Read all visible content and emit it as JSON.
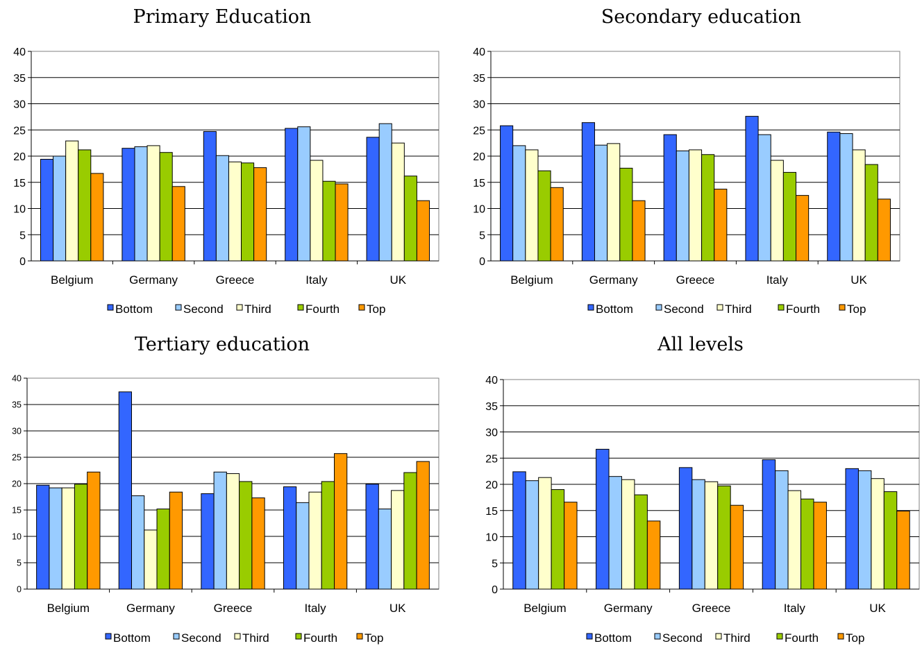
{
  "chart_data": [
    {
      "type": "bar",
      "title": "Primary Education",
      "categories": [
        "Belgium",
        "Germany",
        "Greece",
        "Italy",
        "UK"
      ],
      "series": [
        {
          "name": "Bottom",
          "values": [
            19.4,
            21.5,
            24.7,
            25.3,
            23.6
          ]
        },
        {
          "name": "Second",
          "values": [
            20.0,
            21.8,
            20.1,
            25.6,
            26.2
          ]
        },
        {
          "name": "Third",
          "values": [
            22.9,
            22.0,
            18.9,
            19.2,
            22.5
          ]
        },
        {
          "name": "Fourth",
          "values": [
            21.2,
            20.7,
            18.7,
            15.2,
            16.2
          ]
        },
        {
          "name": "Top",
          "values": [
            16.7,
            14.2,
            17.8,
            14.7,
            11.5
          ]
        }
      ],
      "ylim": [
        0,
        40
      ],
      "yticks": [
        "0",
        "5",
        "10",
        "15",
        "20",
        "25",
        "30",
        "35",
        "40"
      ],
      "grid": true,
      "legend": "bottom"
    },
    {
      "type": "bar",
      "title": "Secondary education",
      "categories": [
        "Belgium",
        "Germany",
        "Greece",
        "Italy",
        "UK"
      ],
      "series": [
        {
          "name": "Bottom",
          "values": [
            25.8,
            26.4,
            24.1,
            27.6,
            24.6
          ]
        },
        {
          "name": "Second",
          "values": [
            22.0,
            22.1,
            21.0,
            24.1,
            24.3
          ]
        },
        {
          "name": "Third",
          "values": [
            21.2,
            22.4,
            21.2,
            19.2,
            21.2
          ]
        },
        {
          "name": "Fourth",
          "values": [
            17.2,
            17.7,
            20.3,
            16.9,
            18.4
          ]
        },
        {
          "name": "Top",
          "values": [
            14.0,
            11.5,
            13.7,
            12.5,
            11.8
          ]
        }
      ],
      "ylim": [
        0,
        40
      ],
      "yticks": [
        "0",
        "5",
        "10",
        "15",
        "20",
        "25",
        "30",
        "35",
        "40"
      ],
      "grid": true,
      "legend": "bottom"
    },
    {
      "type": "bar",
      "title": "Tertiary education",
      "categories": [
        "Belgium",
        "Germany",
        "Greece",
        "Italy",
        "UK"
      ],
      "series": [
        {
          "name": "Bottom",
          "values": [
            19.7,
            37.4,
            18.1,
            19.4,
            19.9
          ]
        },
        {
          "name": "Second",
          "values": [
            19.2,
            17.7,
            22.2,
            16.4,
            15.2
          ]
        },
        {
          "name": "Third",
          "values": [
            19.2,
            11.2,
            21.9,
            18.4,
            18.7
          ]
        },
        {
          "name": "Fourth",
          "values": [
            19.9,
            15.2,
            20.4,
            20.4,
            22.1
          ]
        },
        {
          "name": "Top",
          "values": [
            22.2,
            18.4,
            17.3,
            25.7,
            24.2
          ]
        }
      ],
      "ylim": [
        0,
        40
      ],
      "yticks": [
        "0",
        "5",
        "10",
        "15",
        "20",
        "25",
        "30",
        "35",
        "40"
      ],
      "grid": true,
      "legend": "bottom"
    },
    {
      "type": "bar",
      "title": "All levels",
      "categories": [
        "Belgium",
        "Germany",
        "Greece",
        "Italy",
        "UK"
      ],
      "series": [
        {
          "name": "Bottom",
          "values": [
            22.4,
            26.7,
            23.2,
            24.7,
            23.0
          ]
        },
        {
          "name": "Second",
          "values": [
            20.7,
            21.5,
            20.9,
            22.6,
            22.6
          ]
        },
        {
          "name": "Third",
          "values": [
            21.3,
            20.9,
            20.5,
            18.8,
            21.1
          ]
        },
        {
          "name": "Fourth",
          "values": [
            19.0,
            18.0,
            19.7,
            17.2,
            18.6
          ]
        },
        {
          "name": "Top",
          "values": [
            16.6,
            13.0,
            16.0,
            16.6,
            14.9
          ]
        }
      ],
      "ylim": [
        0,
        40
      ],
      "yticks": [
        "0",
        "5",
        "10",
        "15",
        "20",
        "25",
        "30",
        "35",
        "40"
      ],
      "grid": true,
      "legend": "bottom"
    }
  ],
  "colors": {
    "Bottom": "#3366ff",
    "Second": "#99ccff",
    "Third": "#ffffcc",
    "Fourth": "#99cc00",
    "Top": "#ff9900"
  }
}
